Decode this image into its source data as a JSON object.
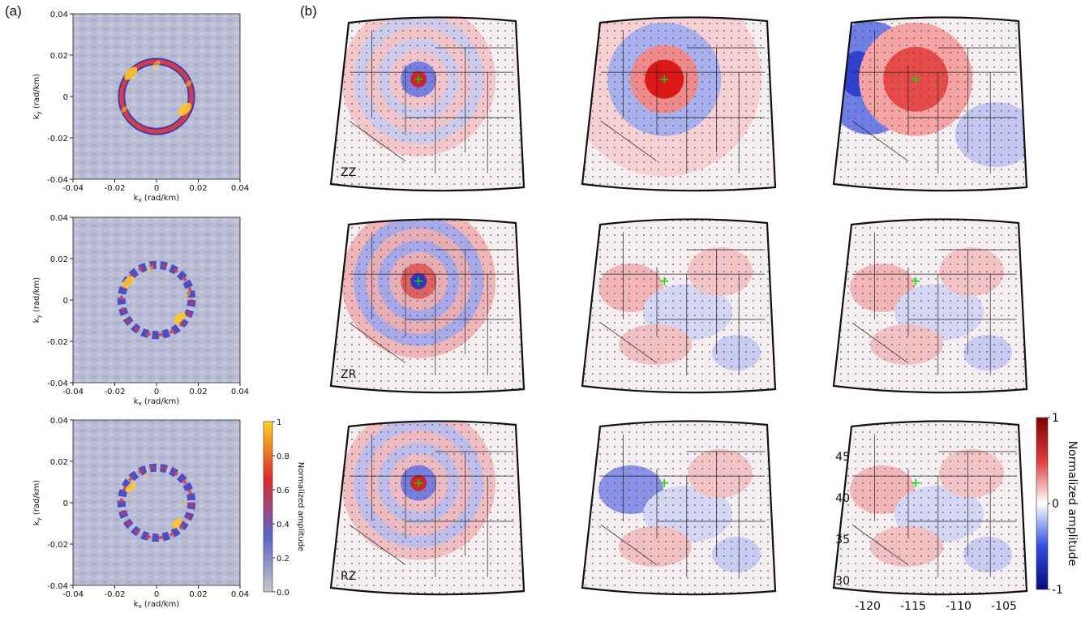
{
  "panel_a": {
    "letter": "(a)",
    "xlabel_main": "k",
    "xlabel_sub": "x",
    "xlabel_unit": " (rad/km)",
    "ylabel_main": "k",
    "ylabel_sub": "y",
    "ylabel_unit": " (rad/km)",
    "ticks": [
      "-0.04",
      "-0.02",
      "0",
      "0.02",
      "0.04"
    ],
    "colorbar": {
      "label": "Normalized amplitude",
      "ticks": [
        "0.0",
        "0.2",
        "0.4",
        "0.6",
        "0.8",
        "1"
      ],
      "colors": [
        "#c8c8c8",
        "#5a63c8",
        "#e02a2a",
        "#ffd21e"
      ]
    }
  },
  "panel_b": {
    "letter": "(b)",
    "row_labels": [
      "ZZ",
      "ZR",
      "RZ"
    ],
    "lat_ticks": [
      "45",
      "40",
      "35",
      "30"
    ],
    "lon_ticks": [
      "-120",
      "-115",
      "-110",
      "-105"
    ],
    "colorbar": {
      "label": "Normalized amplitude",
      "ticks": [
        "1",
        "0",
        "-1"
      ],
      "colors": [
        "#0a0a80",
        "#2e4ee0",
        "#ffffff",
        "#e03a3a",
        "#800000"
      ]
    },
    "source_marker_color": "#00dd00"
  },
  "chart_data": {
    "type": "heatmap",
    "panels": [
      {
        "panel": "a",
        "row": 1,
        "axes": "kx-ky",
        "xlim": [
          -0.04,
          0.04
        ],
        "ylim": [
          -0.04,
          0.04
        ],
        "ring_radius": 0.016,
        "peak_amplitude": 1.0
      },
      {
        "panel": "a",
        "row": 2,
        "axes": "kx-ky",
        "xlim": [
          -0.04,
          0.04
        ],
        "ylim": [
          -0.04,
          0.04
        ],
        "ring_radius": 0.016,
        "peak_amplitude": 1.0
      },
      {
        "panel": "a",
        "row": 3,
        "axes": "kx-ky",
        "xlim": [
          -0.04,
          0.04
        ],
        "ylim": [
          -0.04,
          0.04
        ],
        "ring_radius": 0.016,
        "peak_amplitude": 1.0
      },
      {
        "panel": "b",
        "row": "ZZ",
        "maps": 3,
        "source_lon": -111.5,
        "source_lat": 41.5
      },
      {
        "panel": "b",
        "row": "ZR",
        "maps": 3,
        "source_lon": -111.5,
        "source_lat": 41.5
      },
      {
        "panel": "b",
        "row": "RZ",
        "maps": 3,
        "source_lon": -111.5,
        "source_lat": 41.5
      }
    ]
  }
}
